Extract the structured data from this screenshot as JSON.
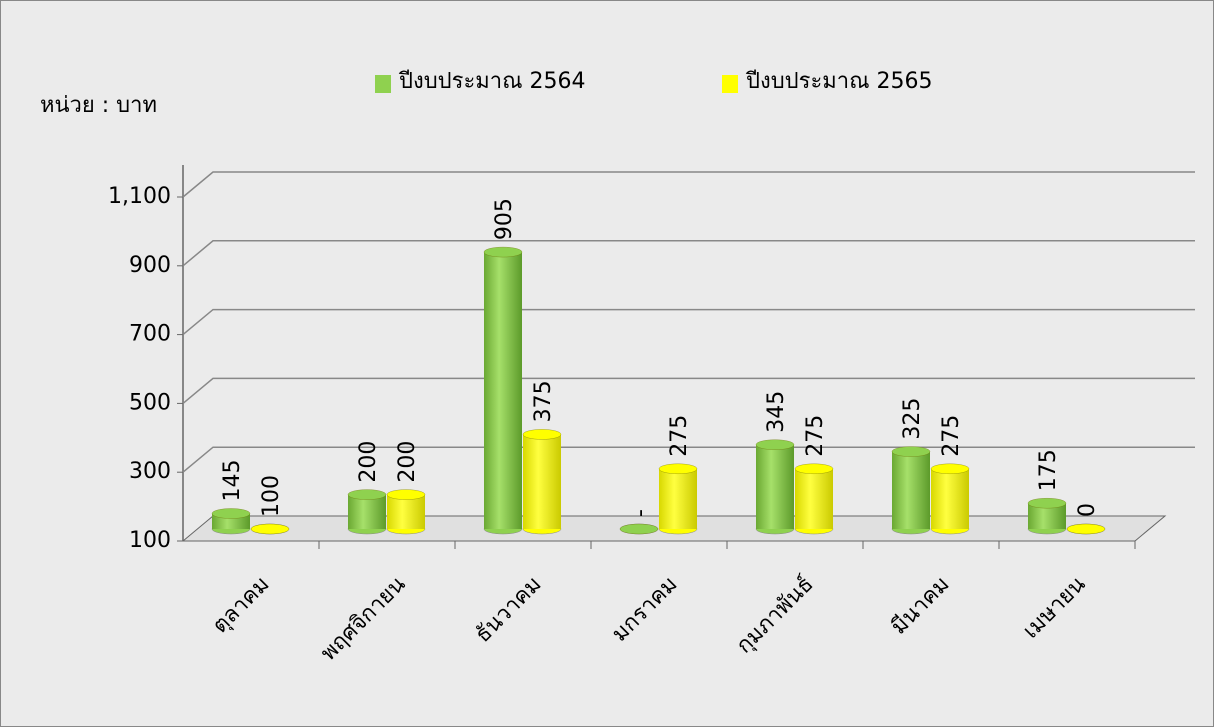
{
  "chart_data": {
    "type": "bar3d",
    "unit_label": "หน่วย : บาท",
    "categories": [
      "ตุลาคม",
      "พฤศจิกายน",
      "ธันวาคม",
      "มกราคม",
      "กุมภาพันธ์",
      "มีนาคม",
      "เมษายน"
    ],
    "series": [
      {
        "name": "ปีงบประมาณ 2564",
        "color": "#8fd14f",
        "values": [
          145,
          200,
          905,
          0,
          345,
          325,
          175
        ],
        "value_labels": [
          "145",
          "200",
          "905",
          "-",
          "345",
          "325",
          "175"
        ]
      },
      {
        "name": "ปีงบประมาณ 2565",
        "color": "#ffff00",
        "values": [
          100,
          200,
          375,
          275,
          275,
          275,
          0
        ]
      }
    ],
    "ylim": [
      100,
      1100
    ],
    "yticks": [
      100,
      300,
      500,
      700,
      900,
      {
        "value": 1100,
        "label": "1,100"
      }
    ],
    "grid": true
  }
}
